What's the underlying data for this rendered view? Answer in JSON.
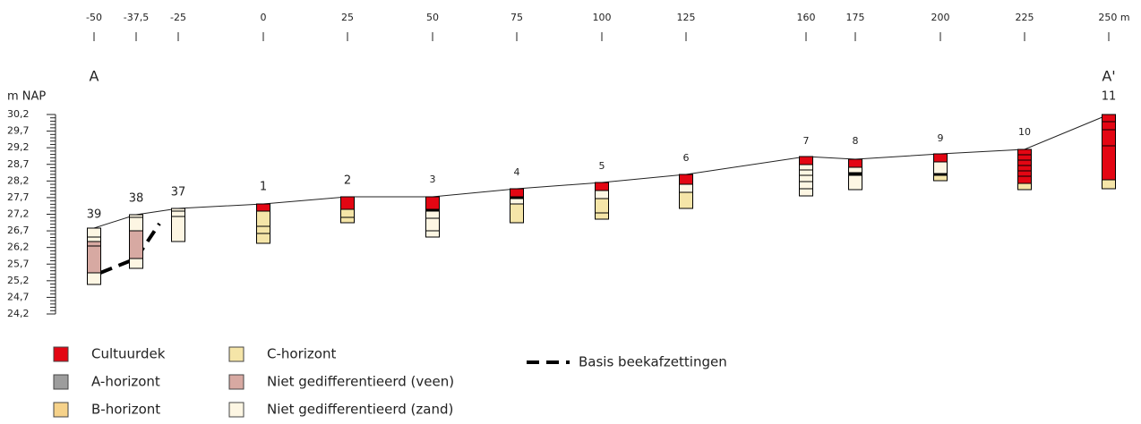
{
  "top_axis": {
    "ticks": [
      "-50",
      "-37,5",
      "-25",
      "0",
      "25",
      "50",
      "75",
      "100",
      "125",
      "160",
      "175",
      "200",
      "225",
      "250 m"
    ]
  },
  "points": {
    "start": "A",
    "end": "A'"
  },
  "y_axis": {
    "label": "m NAP",
    "ticks": [
      "30,2",
      "29,7",
      "29,2",
      "28,7",
      "28,2",
      "27,7",
      "27,2",
      "26,7",
      "26,2",
      "25,7",
      "25,2",
      "24,7",
      "24,2"
    ]
  },
  "boreholes": [
    {
      "label": "39"
    },
    {
      "label": "38"
    },
    {
      "label": "37"
    },
    {
      "label": "1"
    },
    {
      "label": "2"
    },
    {
      "label": "3"
    },
    {
      "label": "4"
    },
    {
      "label": "5"
    },
    {
      "label": "6"
    },
    {
      "label": "7"
    },
    {
      "label": "8"
    },
    {
      "label": "9"
    },
    {
      "label": "10"
    },
    {
      "label": "11"
    }
  ],
  "legend": {
    "items": [
      "Cultuurdek",
      "A-horizont",
      "B-horizont",
      "C-horizont",
      "Niet gedifferentieerd (veen)",
      "Niet gedifferentieerd (zand)",
      "Basis beekafzettingen"
    ]
  }
}
